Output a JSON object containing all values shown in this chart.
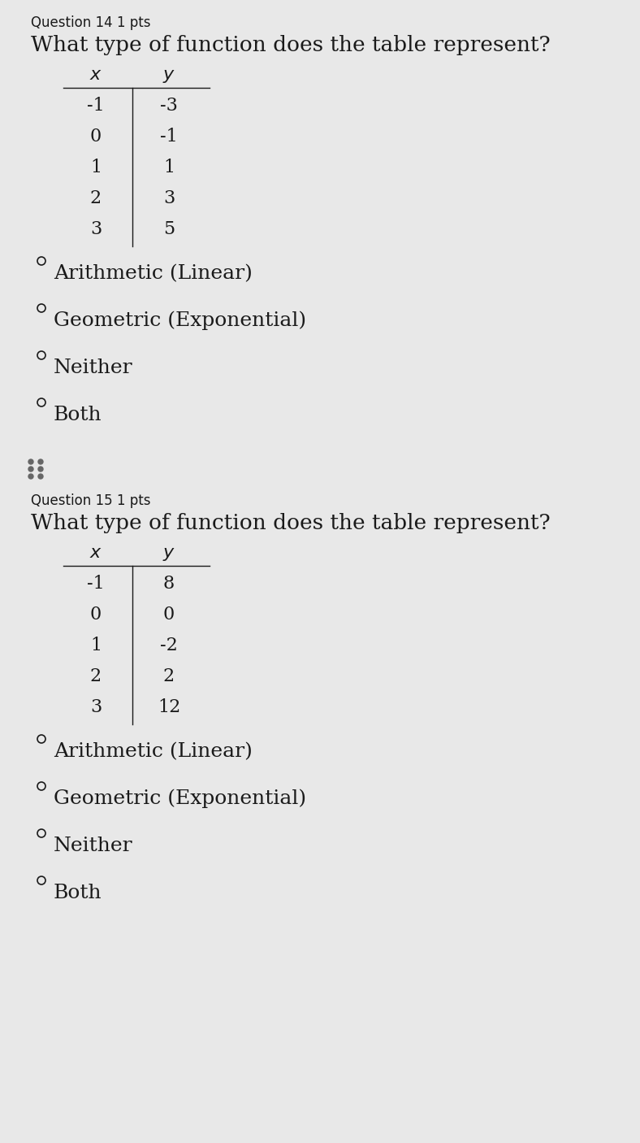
{
  "bg_color": "#e8e8e8",
  "text_color": "#1a1a1a",
  "q14": {
    "question_label": "Question 14 1 pts",
    "question_text": "What type of function does the table represent?",
    "table_x": [
      "-1",
      "0",
      "1",
      "2",
      "3"
    ],
    "table_y": [
      "-3",
      "-1",
      "1",
      "3",
      "5"
    ],
    "choices": [
      "Arithmetic (Linear)",
      "Geometric (Exponential)",
      "Neither",
      "Both"
    ]
  },
  "q15": {
    "question_label": "Question 15 1 pts",
    "question_text": "What type of function does the table represent?",
    "table_x": [
      "-1",
      "0",
      "1",
      "2",
      "3"
    ],
    "table_y": [
      "8",
      "0",
      "-2",
      "2",
      "12"
    ],
    "choices": [
      "Arithmetic (Linear)",
      "Geometric (Exponential)",
      "Neither",
      "Both"
    ]
  },
  "fig_width": 7.88,
  "fig_height": 14.06,
  "dpi": 100,
  "q_label_fontsize": 12,
  "q_text_fontsize": 19,
  "table_fontsize": 16,
  "choice_fontsize": 18,
  "radio_size": 10
}
